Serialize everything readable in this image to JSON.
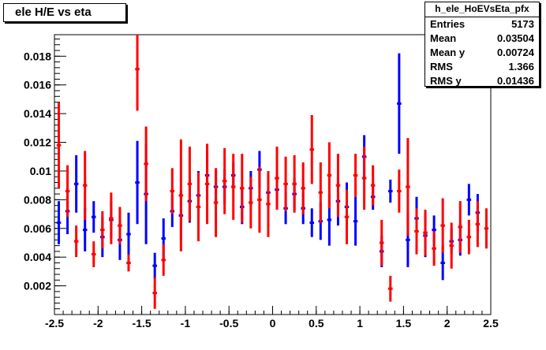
{
  "title": "ele H/E vs eta",
  "stats": {
    "name": "h_ele_HoEVsEta_pfx",
    "rows": [
      {
        "key": "Entries",
        "value": "5173"
      },
      {
        "key": "Mean",
        "value": "0.03504"
      },
      {
        "key": "Mean y",
        "value": "0.00724"
      },
      {
        "key": "RMS",
        "value": "1.366"
      },
      {
        "key": "RMS y",
        "value": "0.01436"
      }
    ]
  },
  "colors": {
    "blue_series": "#0000ff",
    "red_series": "#ff0000",
    "axis": "#000000"
  },
  "chart_data": {
    "type": "scatter",
    "title": "ele H/E vs eta",
    "xlabel": "",
    "ylabel": "",
    "xlim": [
      -2.5,
      2.5
    ],
    "ylim": [
      0,
      0.0195
    ],
    "x_ticks": [
      -2.5,
      -2,
      -1.5,
      -1,
      -0.5,
      0,
      0.5,
      1,
      1.5,
      2,
      2.5
    ],
    "x_tick_labels": [
      "-2.5",
      "-2",
      "-1.5",
      "-1",
      "-0.5",
      "0",
      "0.5",
      "1",
      "1.5",
      "2",
      "2.5"
    ],
    "y_ticks": [
      0.002,
      0.004,
      0.006,
      0.008,
      0.01,
      0.012,
      0.014,
      0.016,
      0.018
    ],
    "y_tick_labels": [
      "0.002",
      "0.004",
      "0.006",
      "0.008",
      "0.01",
      "0.012",
      "0.014",
      "0.016",
      "0.018"
    ],
    "grid": false,
    "bin_half_width": 0.025,
    "series": [
      {
        "color": "#0000ff",
        "points": [
          {
            "x": -2.45,
            "y": 0.0064,
            "err": 0.0015
          },
          {
            "x": -2.35,
            "y": 0.0072,
            "err": 0.0016
          },
          {
            "x": -2.25,
            "y": 0.0091,
            "err": 0.002
          },
          {
            "x": -2.15,
            "y": 0.0059,
            "err": 0.0015
          },
          {
            "x": -2.05,
            "y": 0.0068,
            "err": 0.0011
          },
          {
            "x": -1.95,
            "y": 0.0054,
            "err": 0.0014
          },
          {
            "x": -1.85,
            "y": 0.0066,
            "err": 0.0013
          },
          {
            "x": -1.75,
            "y": 0.0052,
            "err": 0.0014
          },
          {
            "x": -1.65,
            "y": 0.0056,
            "err": 0.0015
          },
          {
            "x": -1.55,
            "y": 0.0092,
            "err": 0.0029
          },
          {
            "x": -1.45,
            "y": 0.0084,
            "err": 0.0035
          },
          {
            "x": -1.35,
            "y": 0.0034,
            "err": 0.0009
          },
          {
            "x": -1.25,
            "y": 0.0053,
            "err": 0.0014
          },
          {
            "x": -1.15,
            "y": 0.0072,
            "err": 0.0011
          },
          {
            "x": -1.05,
            "y": 0.0069,
            "err": 0.0017
          },
          {
            "x": -0.95,
            "y": 0.0079,
            "err": 0.0015
          },
          {
            "x": -0.85,
            "y": 0.0083,
            "err": 0.0017
          },
          {
            "x": -0.75,
            "y": 0.0097,
            "err": 0.0017
          },
          {
            "x": -0.65,
            "y": 0.0089,
            "err": 0.0011
          },
          {
            "x": -0.55,
            "y": 0.0089,
            "err": 0.0012
          },
          {
            "x": -0.45,
            "y": 0.0097,
            "err": 0.0009
          },
          {
            "x": -0.35,
            "y": 0.0075,
            "err": 0.0012
          },
          {
            "x": -0.25,
            "y": 0.0088,
            "err": 0.0012
          },
          {
            "x": -0.15,
            "y": 0.0101,
            "err": 0.0013
          },
          {
            "x": -0.05,
            "y": 0.0085,
            "err": 0.0011
          },
          {
            "x": 0.05,
            "y": 0.0087,
            "err": 0.0011
          },
          {
            "x": 0.15,
            "y": 0.0074,
            "err": 0.0011
          },
          {
            "x": 0.25,
            "y": 0.0084,
            "err": 0.0011
          },
          {
            "x": 0.35,
            "y": 0.0074,
            "err": 0.0011
          },
          {
            "x": 0.45,
            "y": 0.0064,
            "err": 0.001
          },
          {
            "x": 0.55,
            "y": 0.0065,
            "err": 0.0013
          },
          {
            "x": 0.65,
            "y": 0.0066,
            "err": 0.0018
          },
          {
            "x": 0.75,
            "y": 0.0079,
            "err": 0.0017
          },
          {
            "x": 0.85,
            "y": 0.0075,
            "err": 0.0017
          },
          {
            "x": 0.95,
            "y": 0.0065,
            "err": 0.0017
          },
          {
            "x": 1.05,
            "y": 0.011,
            "err": 0.0015
          },
          {
            "x": 1.15,
            "y": 0.0082,
            "err": 0.0009
          },
          {
            "x": 1.25,
            "y": 0.0044,
            "err": 0.0011
          },
          {
            "x": 1.35,
            "y": 0.0086,
            "err": 0.0008
          },
          {
            "x": 1.45,
            "y": 0.0147,
            "err": 0.0035
          },
          {
            "x": 1.55,
            "y": 0.0052,
            "err": 0.0019
          },
          {
            "x": 1.65,
            "y": 0.0067,
            "err": 0.0015
          },
          {
            "x": 1.75,
            "y": 0.0055,
            "err": 0.0015
          },
          {
            "x": 1.85,
            "y": 0.0059,
            "err": 0.001
          },
          {
            "x": 1.95,
            "y": 0.0036,
            "err": 0.0012
          },
          {
            "x": 2.05,
            "y": 0.0051,
            "err": 0.0009
          },
          {
            "x": 2.15,
            "y": 0.0052,
            "err": 0.0011
          },
          {
            "x": 2.25,
            "y": 0.008,
            "err": 0.0011
          },
          {
            "x": 2.35,
            "y": 0.0071,
            "err": 0.0013
          }
        ]
      },
      {
        "color": "#ff0000",
        "points": [
          {
            "x": -2.45,
            "y": 0.0118,
            "err": 0.003
          },
          {
            "x": -2.35,
            "y": 0.0086,
            "err": 0.0018
          },
          {
            "x": -2.25,
            "y": 0.0051,
            "err": 0.0011
          },
          {
            "x": -2.15,
            "y": 0.009,
            "err": 0.0024
          },
          {
            "x": -2.05,
            "y": 0.0042,
            "err": 0.0009
          },
          {
            "x": -1.95,
            "y": 0.0059,
            "err": 0.0013
          },
          {
            "x": -1.85,
            "y": 0.0067,
            "err": 0.0018
          },
          {
            "x": -1.75,
            "y": 0.0062,
            "err": 0.0013
          },
          {
            "x": -1.65,
            "y": 0.0036,
            "err": 0.0006
          },
          {
            "x": -1.55,
            "y": 0.0171,
            "err": 0.0029
          },
          {
            "x": -1.45,
            "y": 0.0105,
            "err": 0.0026
          },
          {
            "x": -1.35,
            "y": 0.0015,
            "err": 0.0011
          },
          {
            "x": -1.25,
            "y": 0.0038,
            "err": 0.0011
          },
          {
            "x": -1.15,
            "y": 0.0086,
            "err": 0.0016
          },
          {
            "x": -1.05,
            "y": 0.0083,
            "err": 0.0039
          },
          {
            "x": -0.95,
            "y": 0.0091,
            "err": 0.0026
          },
          {
            "x": -0.85,
            "y": 0.0075,
            "err": 0.0024
          },
          {
            "x": -0.75,
            "y": 0.0091,
            "err": 0.0028
          },
          {
            "x": -0.65,
            "y": 0.0078,
            "err": 0.0024
          },
          {
            "x": -0.55,
            "y": 0.0093,
            "err": 0.0023
          },
          {
            "x": -0.45,
            "y": 0.0089,
            "err": 0.0023
          },
          {
            "x": -0.35,
            "y": 0.0088,
            "err": 0.0024
          },
          {
            "x": -0.25,
            "y": 0.0078,
            "err": 0.0018
          },
          {
            "x": -0.15,
            "y": 0.008,
            "err": 0.0023
          },
          {
            "x": -0.05,
            "y": 0.0077,
            "err": 0.0023
          },
          {
            "x": 0.05,
            "y": 0.0095,
            "err": 0.0022
          },
          {
            "x": 0.15,
            "y": 0.0091,
            "err": 0.0019
          },
          {
            "x": 0.25,
            "y": 0.0091,
            "err": 0.002
          },
          {
            "x": 0.35,
            "y": 0.0088,
            "err": 0.0018
          },
          {
            "x": 0.45,
            "y": 0.0115,
            "err": 0.0024
          },
          {
            "x": 0.55,
            "y": 0.0085,
            "err": 0.0021
          },
          {
            "x": 0.65,
            "y": 0.0097,
            "err": 0.0023
          },
          {
            "x": 0.75,
            "y": 0.009,
            "err": 0.0022
          },
          {
            "x": 0.85,
            "y": 0.0068,
            "err": 0.0019
          },
          {
            "x": 0.95,
            "y": 0.0097,
            "err": 0.0015
          },
          {
            "x": 1.05,
            "y": 0.0095,
            "err": 0.0022
          },
          {
            "x": 1.15,
            "y": 0.009,
            "err": 0.0014
          },
          {
            "x": 1.25,
            "y": 0.005,
            "err": 0.0016
          },
          {
            "x": 1.35,
            "y": 0.0018,
            "err": 0.0009
          },
          {
            "x": 1.45,
            "y": 0.0086,
            "err": 0.0015
          },
          {
            "x": 1.55,
            "y": 0.0089,
            "err": 0.0034
          },
          {
            "x": 1.65,
            "y": 0.0058,
            "err": 0.0016
          },
          {
            "x": 1.75,
            "y": 0.0057,
            "err": 0.0016
          },
          {
            "x": 1.85,
            "y": 0.0046,
            "err": 0.0012
          },
          {
            "x": 1.95,
            "y": 0.0062,
            "err": 0.0019
          },
          {
            "x": 2.05,
            "y": 0.0048,
            "err": 0.0016
          },
          {
            "x": 2.15,
            "y": 0.0061,
            "err": 0.0018
          },
          {
            "x": 2.25,
            "y": 0.0054,
            "err": 0.0012
          },
          {
            "x": 2.35,
            "y": 0.0063,
            "err": 0.0016
          },
          {
            "x": 2.45,
            "y": 0.006,
            "err": 0.0014
          }
        ]
      }
    ]
  }
}
